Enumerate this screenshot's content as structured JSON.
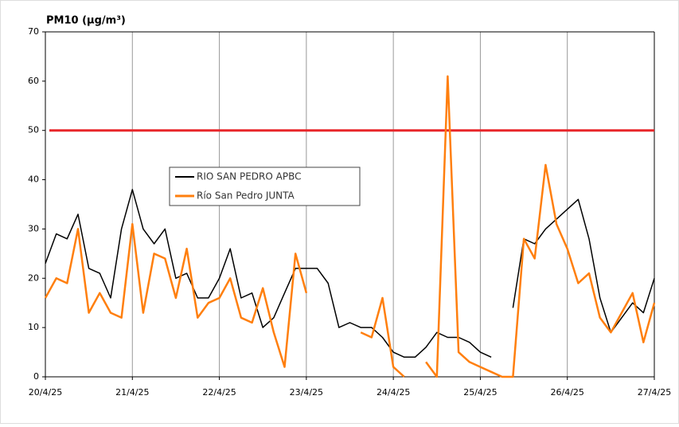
{
  "chart_data": {
    "type": "line",
    "title": "PM10 (µg/m³)",
    "categories": [
      "20/4/25",
      null,
      null,
      null,
      null,
      null,
      null,
      null,
      "21/4/25",
      null,
      null,
      null,
      null,
      null,
      null,
      null,
      "22/4/25",
      null,
      null,
      null,
      null,
      null,
      null,
      null,
      "23/4/25",
      null,
      null,
      null,
      null,
      null,
      null,
      null,
      "24/4/25",
      null,
      null,
      null,
      null,
      null,
      null,
      null,
      "25/4/25",
      null,
      null,
      null,
      null,
      null,
      null,
      null,
      "26/4/25",
      null,
      null,
      null,
      null,
      null,
      null,
      null,
      "27/4/25"
    ],
    "series": [
      {
        "name": "RIO SAN PEDRO APBC",
        "color": "#000000",
        "values": [
          23,
          29,
          28,
          33,
          22,
          21,
          16,
          30,
          38,
          30,
          27,
          30,
          20,
          21,
          16,
          16,
          20,
          26,
          16,
          17,
          10,
          12,
          17,
          22,
          22,
          22,
          19,
          10,
          11,
          10,
          10,
          8,
          5,
          4,
          4,
          6,
          9,
          8,
          8,
          7,
          5,
          4,
          null,
          14,
          28,
          27,
          30,
          32,
          34,
          36,
          28,
          16,
          9,
          12,
          15,
          13,
          20
        ]
      },
      {
        "name": "Río San Pedro JUNTA",
        "color": "#ff7f0e",
        "values": [
          16,
          20,
          19,
          30,
          13,
          17,
          13,
          12,
          31,
          13,
          25,
          24,
          16,
          26,
          12,
          15,
          16,
          20,
          12,
          11,
          18,
          9,
          2,
          25,
          17,
          null,
          null,
          null,
          null,
          9,
          8,
          16,
          2,
          0,
          null,
          3,
          0,
          61,
          5,
          3,
          2,
          1,
          0,
          0,
          28,
          24,
          43,
          31,
          26,
          19,
          21,
          12,
          9,
          13,
          17,
          7,
          15
        ]
      }
    ],
    "reference_line": {
      "value": 50,
      "color": "#e8262a"
    },
    "ylim": [
      0,
      70
    ],
    "yticks": [
      0,
      10,
      20,
      30,
      40,
      50,
      60,
      70
    ],
    "grid": true
  }
}
